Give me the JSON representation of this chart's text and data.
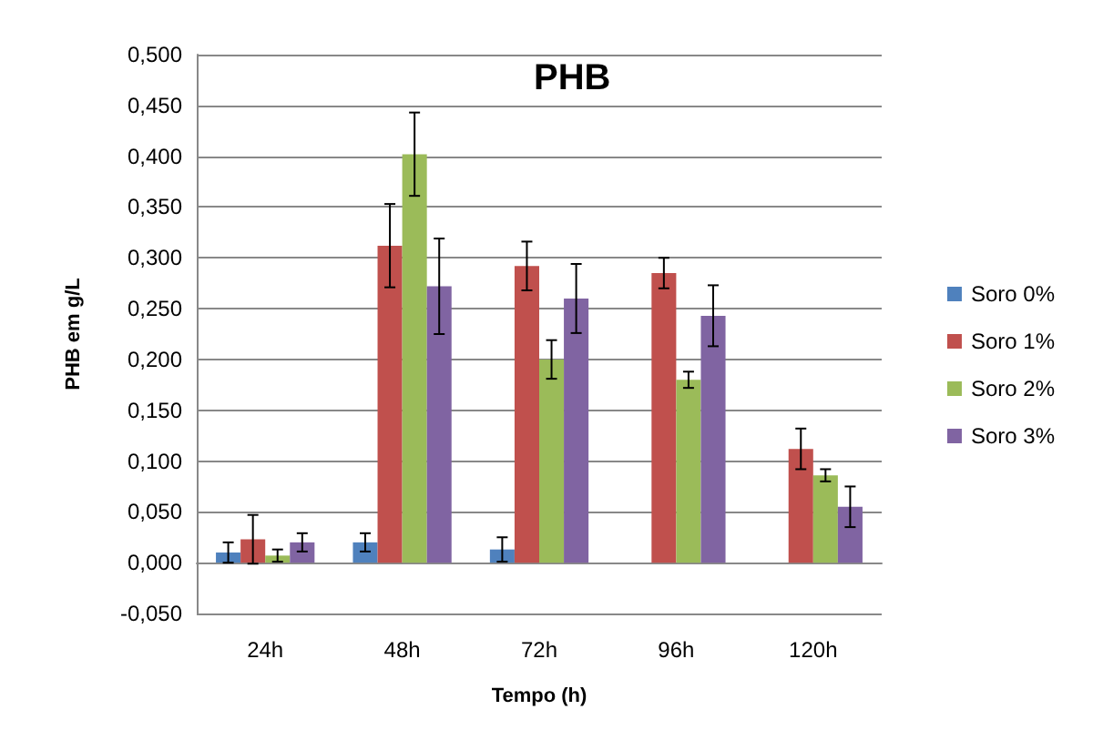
{
  "chart_data": {
    "type": "bar",
    "title": "PHB",
    "xlabel": "Tempo (h)",
    "ylabel": "PHB em g/L",
    "categories": [
      "24h",
      "48h",
      "72h",
      "96h",
      "120h"
    ],
    "series": [
      {
        "name": "Soro 0%",
        "color": "#4f81bd",
        "values": [
          0.01,
          0.02,
          0.013,
          0.0,
          0.0
        ],
        "errors": [
          0.01,
          0.009,
          0.012,
          null,
          null
        ]
      },
      {
        "name": "Soro 1%",
        "color": "#c0504d",
        "values": [
          0.023,
          0.312,
          0.292,
          0.285,
          0.112
        ],
        "errors": [
          0.024,
          0.041,
          0.024,
          0.015,
          0.02
        ]
      },
      {
        "name": "Soro 2%",
        "color": "#9bbb59",
        "values": [
          0.007,
          0.402,
          0.2,
          0.18,
          0.086
        ],
        "errors": [
          0.006,
          0.041,
          0.019,
          0.008,
          0.006
        ]
      },
      {
        "name": "Soro 3%",
        "color": "#8064a2",
        "values": [
          0.02,
          0.272,
          0.26,
          0.243,
          0.055
        ],
        "errors": [
          0.009,
          0.047,
          0.034,
          0.03,
          0.02
        ]
      }
    ],
    "ylim": [
      -0.05,
      0.5
    ],
    "yticks": [
      {
        "value": -0.05,
        "label": "-0,050"
      },
      {
        "value": 0,
        "label": "0,000"
      },
      {
        "value": 0.05,
        "label": "0,050"
      },
      {
        "value": 0.1,
        "label": "0,100"
      },
      {
        "value": 0.15,
        "label": "0,150"
      },
      {
        "value": 0.2,
        "label": "0,200"
      },
      {
        "value": 0.25,
        "label": "0,250"
      },
      {
        "value": 0.3,
        "label": "0,300"
      },
      {
        "value": 0.35,
        "label": "0,350"
      },
      {
        "value": 0.4,
        "label": "0,400"
      },
      {
        "value": 0.45,
        "label": "0,450"
      },
      {
        "value": 0.5,
        "label": "0,500"
      }
    ],
    "grid": "y",
    "legend": "right"
  }
}
